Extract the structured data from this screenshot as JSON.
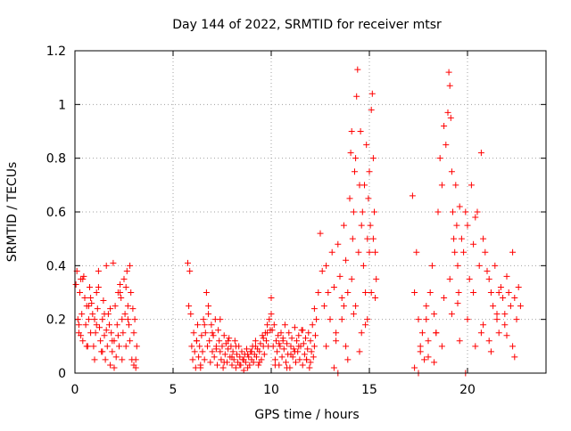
{
  "chart_data": {
    "type": "scatter",
    "title": "Day 144 of 2022, SRMTID for receiver mtsr",
    "xlabel": "GPS time / hours",
    "ylabel": "SRMTID / TECUs",
    "xlim": [
      0,
      24
    ],
    "ylim": [
      0,
      1.2
    ],
    "x_ticks": [
      0,
      5,
      10,
      15,
      20
    ],
    "x_tick_labels": [
      "0",
      "5",
      "10",
      "15",
      "20"
    ],
    "y_ticks": [
      0,
      0.2,
      0.4,
      0.6,
      0.8,
      1.0,
      1.2
    ],
    "y_tick_labels": [
      "0",
      "0.2",
      "0.4",
      "0.6",
      "0.8",
      "1",
      "1.2"
    ],
    "grid": true,
    "legend": "none",
    "marker": "plus",
    "color": "#ff0000",
    "series": [
      {
        "x": [
          0.05,
          0.1,
          0.15,
          0.2,
          0.25,
          0.3,
          0.35,
          0.4,
          0.45,
          0.5,
          0.55,
          0.6,
          0.65,
          0.7,
          0.75,
          0.8,
          0.85,
          0.9,
          0.95,
          1.0,
          1.05,
          1.1,
          1.15,
          1.2,
          1.25,
          1.3,
          1.35,
          1.4,
          1.45,
          1.5,
          1.55,
          1.6,
          1.65,
          1.7,
          1.75,
          1.8,
          1.85,
          1.9,
          1.95,
          2.0,
          2.05,
          2.1,
          2.15,
          2.2,
          2.25,
          2.3,
          2.35,
          2.4,
          2.45,
          2.5,
          2.55,
          2.6,
          2.65,
          2.7,
          2.75,
          2.8,
          2.85,
          2.9,
          2.95,
          3.0,
          3.05,
          3.1,
          3.15,
          0.2,
          0.4,
          0.6,
          0.8,
          1.0,
          1.2,
          1.4,
          1.6,
          1.8,
          2.0,
          2.2,
          2.4,
          2.6,
          2.8,
          3.0,
          0.3,
          0.7,
          1.1,
          1.5,
          1.9,
          2.3,
          2.7,
          3.1
        ],
        "y": [
          0.33,
          0.38,
          0.2,
          0.15,
          0.3,
          0.35,
          0.22,
          0.12,
          0.36,
          0.28,
          0.18,
          0.25,
          0.1,
          0.2,
          0.32,
          0.15,
          0.26,
          0.22,
          0.1,
          0.05,
          0.15,
          0.3,
          0.24,
          0.38,
          0.17,
          0.12,
          0.08,
          0.2,
          0.27,
          0.14,
          0.05,
          0.4,
          0.1,
          0.22,
          0.18,
          0.03,
          0.15,
          0.08,
          0.41,
          0.12,
          0.25,
          0.06,
          0.18,
          0.3,
          0.1,
          0.33,
          0.28,
          0.2,
          0.15,
          0.35,
          0.22,
          0.1,
          0.38,
          0.25,
          0.18,
          0.4,
          0.3,
          0.05,
          0.24,
          0.15,
          0.2,
          0.02,
          0.1,
          0.18,
          0.35,
          0.1,
          0.28,
          0.2,
          0.32,
          0.08,
          0.16,
          0.24,
          0.02,
          0.14,
          0.05,
          0.32,
          0.12,
          0.03,
          0.14,
          0.25,
          0.18,
          0.22,
          0.12,
          0.3,
          0.2,
          0.05
        ]
      },
      {
        "x": [
          5.75,
          5.8,
          5.85,
          5.9,
          5.95,
          6.0,
          6.05,
          6.1,
          6.15,
          6.2,
          6.25,
          6.3,
          6.35,
          6.4,
          6.45,
          6.5,
          6.55,
          6.6,
          6.65,
          6.7,
          6.75,
          6.8,
          6.85,
          6.9,
          6.95,
          7.0,
          7.05,
          7.1,
          7.15,
          7.2,
          7.25,
          7.3,
          7.35,
          7.4,
          7.45,
          7.5,
          7.55,
          7.6,
          7.65,
          7.7,
          7.75,
          7.8,
          7.85,
          7.9,
          7.95,
          8.0,
          8.05,
          8.1,
          8.15,
          8.2,
          8.25,
          8.3,
          8.35,
          8.4,
          8.45,
          8.5,
          8.55,
          8.6,
          8.65,
          8.7,
          8.75,
          8.8,
          8.85,
          8.9,
          8.95,
          9.0,
          9.05,
          9.1,
          9.15,
          9.2,
          9.25,
          9.3,
          9.35,
          9.4,
          9.45,
          9.5,
          9.55,
          9.6,
          9.65,
          9.7,
          9.75,
          9.8,
          9.85,
          9.9,
          9.95,
          10.0,
          6.2,
          6.6,
          7.0,
          7.4,
          7.8,
          8.2,
          8.6,
          9.0,
          9.4,
          9.8,
          6.4,
          6.8,
          7.2,
          7.6,
          8.0,
          8.4,
          8.8,
          9.2,
          9.6,
          10.0
        ],
        "y": [
          0.41,
          0.25,
          0.38,
          0.22,
          0.1,
          0.05,
          0.15,
          0.08,
          0.02,
          0.12,
          0.18,
          0.06,
          0.1,
          0.03,
          0.14,
          0.08,
          0.2,
          0.05,
          0.15,
          0.3,
          0.1,
          0.22,
          0.12,
          0.04,
          0.18,
          0.08,
          0.14,
          0.06,
          0.2,
          0.1,
          0.03,
          0.16,
          0.12,
          0.08,
          0.05,
          0.1,
          0.02,
          0.14,
          0.07,
          0.11,
          0.04,
          0.09,
          0.13,
          0.06,
          0.1,
          0.03,
          0.08,
          0.05,
          0.12,
          0.02,
          0.07,
          0.04,
          0.1,
          0.06,
          0.03,
          0.08,
          0.05,
          0.01,
          0.07,
          0.04,
          0.09,
          0.02,
          0.06,
          0.03,
          0.08,
          0.05,
          0.1,
          0.04,
          0.07,
          0.12,
          0.06,
          0.09,
          0.03,
          0.08,
          0.11,
          0.05,
          0.14,
          0.1,
          0.07,
          0.15,
          0.12,
          0.18,
          0.1,
          0.2,
          0.16,
          0.28,
          0.12,
          0.18,
          0.15,
          0.2,
          0.12,
          0.1,
          0.05,
          0.08,
          0.04,
          0.15,
          0.02,
          0.25,
          0.09,
          0.04,
          0.06,
          0.03,
          0.07,
          0.1,
          0.13,
          0.22
        ]
      },
      {
        "x": [
          10.05,
          10.1,
          10.15,
          10.2,
          10.25,
          10.3,
          10.35,
          10.4,
          10.45,
          10.5,
          10.55,
          10.6,
          10.65,
          10.7,
          10.75,
          10.8,
          10.85,
          10.9,
          10.95,
          11.0,
          11.05,
          11.1,
          11.15,
          11.2,
          11.25,
          11.3,
          11.35,
          11.4,
          11.45,
          11.5,
          11.55,
          11.6,
          11.65,
          11.7,
          11.75,
          11.8,
          11.85,
          11.9,
          11.95,
          12.0,
          12.05,
          12.1,
          12.15,
          12.2,
          12.25,
          12.3,
          10.2,
          10.6,
          11.0,
          11.4,
          11.8,
          12.2,
          10.4,
          10.8,
          11.2,
          11.6,
          12.0,
          12.4
        ],
        "y": [
          0.16,
          0.1,
          0.18,
          0.05,
          0.12,
          0.08,
          0.14,
          0.03,
          0.1,
          0.15,
          0.06,
          0.12,
          0.09,
          0.18,
          0.04,
          0.11,
          0.07,
          0.15,
          0.02,
          0.1,
          0.13,
          0.06,
          0.09,
          0.17,
          0.04,
          0.12,
          0.08,
          0.14,
          0.05,
          0.1,
          0.16,
          0.03,
          0.11,
          0.07,
          0.13,
          0.05,
          0.09,
          0.15,
          0.02,
          0.12,
          0.08,
          0.18,
          0.06,
          0.1,
          0.14,
          0.2,
          0.03,
          0.13,
          0.07,
          0.1,
          0.05,
          0.24,
          0.11,
          0.02,
          0.08,
          0.16,
          0.04,
          0.3
        ]
      },
      {
        "x": [
          12.5,
          12.6,
          12.7,
          12.8,
          12.9,
          13.0,
          13.1,
          13.2,
          13.3,
          13.4,
          13.5,
          13.6,
          13.7,
          13.8,
          13.9,
          14.0,
          14.05,
          14.1,
          14.15,
          14.2,
          14.25,
          14.3,
          14.35,
          14.4,
          14.45,
          14.5,
          14.55,
          14.6,
          14.65,
          14.7,
          14.75,
          14.8,
          14.85,
          14.9,
          14.95,
          15.0,
          15.05,
          15.1,
          15.15,
          15.2,
          15.25,
          15.3,
          15.35,
          13.3,
          13.6,
          13.9,
          14.2,
          14.5,
          14.8,
          15.1,
          12.8,
          13.2,
          13.7,
          14.1,
          14.6,
          15.0,
          15.3,
          13.4,
          13.8,
          14.3,
          14.9,
          15.2
        ],
        "y": [
          0.52,
          0.38,
          0.25,
          0.4,
          0.3,
          0.2,
          0.45,
          0.32,
          0.15,
          0.48,
          0.36,
          0.28,
          0.55,
          0.42,
          0.3,
          0.65,
          0.82,
          0.9,
          0.5,
          0.6,
          0.75,
          0.8,
          1.03,
          1.13,
          0.45,
          0.7,
          0.9,
          0.55,
          0.6,
          0.4,
          0.7,
          0.3,
          0.85,
          0.5,
          0.65,
          0.75,
          0.55,
          0.98,
          1.04,
          0.8,
          0.6,
          0.45,
          0.35,
          0.12,
          0.2,
          0.05,
          0.22,
          0.08,
          0.18,
          0.3,
          0.1,
          0.02,
          0.25,
          0.35,
          0.15,
          0.45,
          0.28,
          0.0,
          0.1,
          0.25,
          0.2,
          0.5
        ]
      },
      {
        "x": [
          17.2,
          17.3,
          17.4,
          17.5,
          17.6,
          17.7,
          17.8,
          17.9,
          18.0,
          18.1,
          18.2,
          18.3,
          18.4,
          18.5,
          18.6,
          18.7,
          18.8,
          18.9,
          19.0,
          19.05,
          19.1,
          19.15,
          19.2,
          19.25,
          19.3,
          19.35,
          19.4,
          19.45,
          19.5,
          19.55,
          19.6,
          19.7,
          19.8,
          19.9,
          20.0,
          20.1,
          20.2,
          20.3,
          20.4,
          20.5,
          20.6,
          20.7,
          20.8,
          20.9,
          21.0,
          21.1,
          21.2,
          21.3,
          21.4,
          21.5,
          21.6,
          21.7,
          21.8,
          21.9,
          22.0,
          22.1,
          22.2,
          22.3,
          22.4,
          22.5,
          22.6,
          22.7,
          17.3,
          17.6,
          18.0,
          18.4,
          18.8,
          19.2,
          19.6,
          20.0,
          20.4,
          20.8,
          21.2,
          21.6,
          22.0,
          22.4,
          17.5,
          17.9,
          18.3,
          18.7,
          19.1,
          19.5,
          19.9,
          20.3,
          20.7,
          21.1,
          21.5,
          21.9,
          22.3
        ],
        "y": [
          0.66,
          0.3,
          0.45,
          0.2,
          0.1,
          0.15,
          0.05,
          0.25,
          0.12,
          0.3,
          0.4,
          0.22,
          0.15,
          0.6,
          0.8,
          0.7,
          0.92,
          0.85,
          0.97,
          1.12,
          1.07,
          0.95,
          0.75,
          0.6,
          0.5,
          0.45,
          0.7,
          0.55,
          0.4,
          0.3,
          0.62,
          0.5,
          0.45,
          0.6,
          0.55,
          0.35,
          0.7,
          0.48,
          0.58,
          0.6,
          0.4,
          0.82,
          0.5,
          0.45,
          0.38,
          0.35,
          0.3,
          0.25,
          0.4,
          0.2,
          0.15,
          0.32,
          0.28,
          0.22,
          0.36,
          0.3,
          0.25,
          0.45,
          0.28,
          0.2,
          0.32,
          0.25,
          0.02,
          0.08,
          0.06,
          0.15,
          0.28,
          0.22,
          0.12,
          0.2,
          0.1,
          0.18,
          0.08,
          0.3,
          0.14,
          0.06,
          0.0,
          0.2,
          0.04,
          0.1,
          0.35,
          0.26,
          0.0,
          0.3,
          0.15,
          0.12,
          0.22,
          0.18,
          0.1
        ]
      }
    ]
  }
}
